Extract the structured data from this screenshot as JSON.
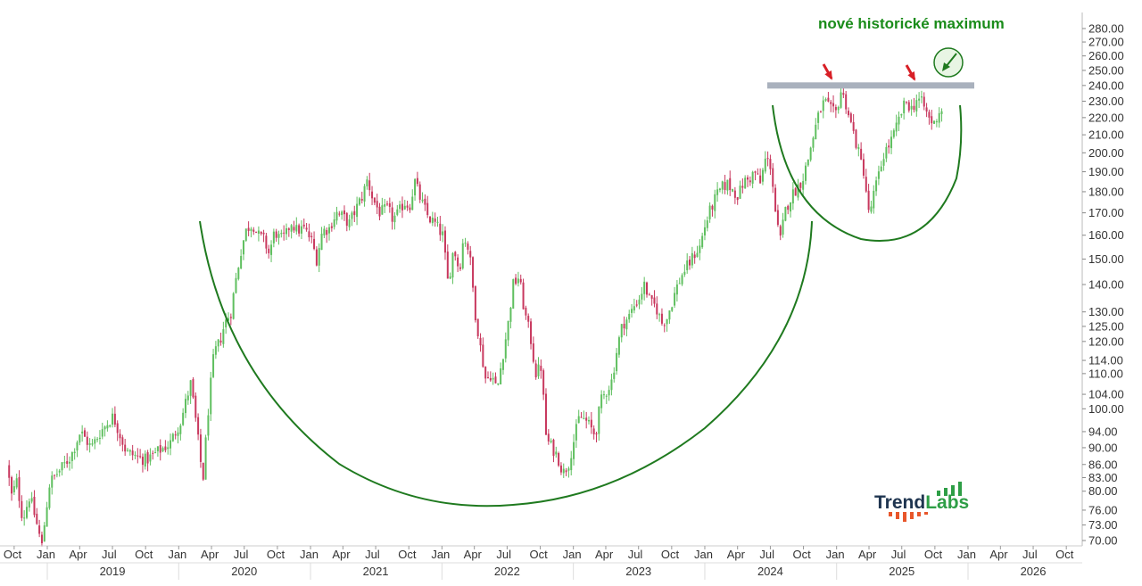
{
  "chart_data": {
    "type": "candlestick",
    "y_scale": "log",
    "y_ticks": [
      "280.00",
      "270.00",
      "260.00",
      "250.00",
      "240.00",
      "230.00",
      "220.00",
      "210.00",
      "200.00",
      "190.00",
      "180.00",
      "170.00",
      "160.00",
      "150.00",
      "140.00",
      "130.00",
      "125.00",
      "120.00",
      "114.00",
      "110.00",
      "104.00",
      "100.00",
      "94.00",
      "90.00",
      "86.00",
      "83.00",
      "80.00",
      "76.00",
      "73.00",
      "70.00"
    ],
    "x_ticks": [
      "Oct",
      "Jan",
      "Apr",
      "Jul",
      "Oct",
      "Jan",
      "Apr",
      "Jul",
      "Oct",
      "Jan",
      "Apr",
      "Jul",
      "Oct",
      "Jan",
      "Apr",
      "Jul",
      "Oct",
      "Jan",
      "Apr",
      "Jul",
      "Oct",
      "Jan",
      "Apr",
      "Jul",
      "Oct",
      "Jan",
      "Apr",
      "Jul",
      "Oct",
      "Jan",
      "Apr",
      "Jul",
      "Oct"
    ],
    "x_tick_dates": [
      "2018-10",
      "2019-01",
      "2019-04",
      "2019-07",
      "2019-10",
      "2020-01",
      "2020-04",
      "2020-07",
      "2020-10",
      "2021-01",
      "2021-04",
      "2021-07",
      "2021-10",
      "2022-01",
      "2022-04",
      "2022-07",
      "2022-10",
      "2023-01",
      "2023-04",
      "2023-07",
      "2023-10",
      "2024-01",
      "2024-04",
      "2024-07",
      "2024-10",
      "2025-01",
      "2025-04",
      "2025-07",
      "2025-10",
      "2026-01",
      "2026-04",
      "2026-07",
      "2026-10"
    ],
    "years": [
      "2019",
      "2020",
      "2021",
      "2022",
      "2023",
      "2024",
      "2025",
      "2026"
    ],
    "price_anchors": [
      [
        "2018-09-17",
        86
      ],
      [
        "2018-10-01",
        79
      ],
      [
        "2018-10-15",
        82
      ],
      [
        "2018-11-01",
        74
      ],
      [
        "2018-11-20",
        79
      ],
      [
        "2018-12-24",
        69
      ],
      [
        "2019-01-15",
        82
      ],
      [
        "2019-02-15",
        85
      ],
      [
        "2019-03-15",
        88
      ],
      [
        "2019-04-10",
        94
      ],
      [
        "2019-05-10",
        90
      ],
      [
        "2019-06-05",
        94
      ],
      [
        "2019-07-10",
        98
      ],
      [
        "2019-08-15",
        89
      ],
      [
        "2019-09-10",
        88
      ],
      [
        "2019-10-10",
        87
      ],
      [
        "2019-11-10",
        89
      ],
      [
        "2019-12-15",
        91
      ],
      [
        "2020-01-15",
        97
      ],
      [
        "2020-02-10",
        107
      ],
      [
        "2020-02-20",
        100
      ],
      [
        "2020-03-15",
        82
      ],
      [
        "2020-04-01",
        102
      ],
      [
        "2020-04-15",
        116
      ],
      [
        "2020-05-01",
        120
      ],
      [
        "2020-05-15",
        126
      ],
      [
        "2020-06-01",
        130
      ],
      [
        "2020-06-15",
        142
      ],
      [
        "2020-07-01",
        155
      ],
      [
        "2020-07-15",
        163
      ],
      [
        "2020-08-01",
        165
      ],
      [
        "2020-08-15",
        160
      ],
      [
        "2020-09-01",
        158
      ],
      [
        "2020-09-15",
        152
      ],
      [
        "2020-10-01",
        162
      ],
      [
        "2020-10-15",
        158
      ],
      [
        "2020-11-01",
        160
      ],
      [
        "2020-11-15",
        166
      ],
      [
        "2020-12-01",
        162
      ],
      [
        "2020-12-20",
        163
      ],
      [
        "2021-01-10",
        158
      ],
      [
        "2021-01-25",
        150
      ],
      [
        "2021-02-10",
        162
      ],
      [
        "2021-03-01",
        163
      ],
      [
        "2021-03-20",
        170
      ],
      [
        "2021-04-10",
        168
      ],
      [
        "2021-04-25",
        165
      ],
      [
        "2021-05-15",
        172
      ],
      [
        "2021-06-01",
        178
      ],
      [
        "2021-06-15",
        186
      ],
      [
        "2021-07-01",
        176
      ],
      [
        "2021-07-20",
        170
      ],
      [
        "2021-08-10",
        172
      ],
      [
        "2021-08-25",
        167
      ],
      [
        "2021-09-10",
        170
      ],
      [
        "2021-09-25",
        175
      ],
      [
        "2021-10-10",
        173
      ],
      [
        "2021-10-25",
        185
      ],
      [
        "2021-11-10",
        176
      ],
      [
        "2021-12-01",
        168
      ],
      [
        "2021-12-20",
        165
      ],
      [
        "2022-01-10",
        160
      ],
      [
        "2022-01-25",
        140
      ],
      [
        "2022-02-10",
        155
      ],
      [
        "2022-02-25",
        145
      ],
      [
        "2022-03-10",
        160
      ],
      [
        "2022-03-25",
        153
      ],
      [
        "2022-04-10",
        130
      ],
      [
        "2022-04-25",
        118
      ],
      [
        "2022-05-10",
        108
      ],
      [
        "2022-05-25",
        110
      ],
      [
        "2022-06-10",
        105
      ],
      [
        "2022-06-25",
        115
      ],
      [
        "2022-07-10",
        125
      ],
      [
        "2022-07-25",
        140
      ],
      [
        "2022-08-10",
        143
      ],
      [
        "2022-08-25",
        130
      ],
      [
        "2022-09-10",
        122
      ],
      [
        "2022-09-25",
        110
      ],
      [
        "2022-10-10",
        112
      ],
      [
        "2022-10-25",
        92
      ],
      [
        "2022-11-10",
        90
      ],
      [
        "2022-11-25",
        88
      ],
      [
        "2022-12-10",
        84
      ],
      [
        "2022-12-25",
        86
      ],
      [
        "2023-01-10",
        92
      ],
      [
        "2023-01-25",
        98
      ],
      [
        "2023-02-10",
        97
      ],
      [
        "2023-02-25",
        95
      ],
      [
        "2023-03-10",
        93
      ],
      [
        "2023-03-25",
        102
      ],
      [
        "2023-04-10",
        105
      ],
      [
        "2023-04-25",
        108
      ],
      [
        "2023-05-10",
        118
      ],
      [
        "2023-05-25",
        126
      ],
      [
        "2023-06-10",
        128
      ],
      [
        "2023-06-25",
        132
      ],
      [
        "2023-07-10",
        135
      ],
      [
        "2023-07-25",
        140
      ],
      [
        "2023-08-10",
        133
      ],
      [
        "2023-08-25",
        132
      ],
      [
        "2023-09-10",
        126
      ],
      [
        "2023-09-25",
        128
      ],
      [
        "2023-10-10",
        134
      ],
      [
        "2023-10-25",
        140
      ],
      [
        "2023-11-10",
        145
      ],
      [
        "2023-11-25",
        148
      ],
      [
        "2023-12-10",
        152
      ],
      [
        "2023-12-25",
        155
      ],
      [
        "2024-01-10",
        165
      ],
      [
        "2024-01-25",
        172
      ],
      [
        "2024-02-10",
        178
      ],
      [
        "2024-02-25",
        182
      ],
      [
        "2024-03-10",
        184
      ],
      [
        "2024-03-25",
        181
      ],
      [
        "2024-04-10",
        178
      ],
      [
        "2024-04-25",
        185
      ],
      [
        "2024-05-10",
        186
      ],
      [
        "2024-05-25",
        190
      ],
      [
        "2024-06-10",
        184
      ],
      [
        "2024-06-25",
        197
      ],
      [
        "2024-07-10",
        193
      ],
      [
        "2024-07-25",
        165
      ],
      [
        "2024-08-05",
        158
      ],
      [
        "2024-08-20",
        172
      ],
      [
        "2024-09-05",
        178
      ],
      [
        "2024-09-20",
        182
      ],
      [
        "2024-10-05",
        186
      ],
      [
        "2024-10-20",
        196
      ],
      [
        "2024-11-05",
        210
      ],
      [
        "2024-11-20",
        222
      ],
      [
        "2024-12-05",
        230
      ],
      [
        "2024-12-20",
        225
      ],
      [
        "2025-01-05",
        222
      ],
      [
        "2025-01-20",
        236
      ],
      [
        "2025-02-01",
        230
      ],
      [
        "2025-02-15",
        218
      ],
      [
        "2025-03-01",
        207
      ],
      [
        "2025-03-15",
        196
      ],
      [
        "2025-03-25",
        190
      ],
      [
        "2025-04-08",
        168
      ],
      [
        "2025-04-20",
        178
      ],
      [
        "2025-05-05",
        188
      ],
      [
        "2025-05-20",
        200
      ],
      [
        "2025-06-05",
        205
      ],
      [
        "2025-06-20",
        212
      ],
      [
        "2025-07-05",
        222
      ],
      [
        "2025-07-20",
        230
      ],
      [
        "2025-08-05",
        225
      ],
      [
        "2025-08-20",
        232
      ],
      [
        "2025-09-05",
        228
      ],
      [
        "2025-09-20",
        220
      ],
      [
        "2025-10-05",
        216
      ],
      [
        "2025-10-20",
        224
      ]
    ],
    "resistance": 240,
    "annotations": [
      "nové historické maximum"
    ]
  },
  "logo": {
    "text_dark": "Trend",
    "text_green": "Labs",
    "color_dark": "#1f3550",
    "color_green": "#2e9e46",
    "color_orange": "#e8562a"
  },
  "colors": {
    "up": "#5fbf5f",
    "down": "#c8385e",
    "arc": "#1f7a1f",
    "resistance": "#a9b1bd",
    "annotation": "#1a8c1a",
    "arrow_red": "#d81f26",
    "axis_text": "#333333",
    "grid_line": "#dddddd"
  }
}
